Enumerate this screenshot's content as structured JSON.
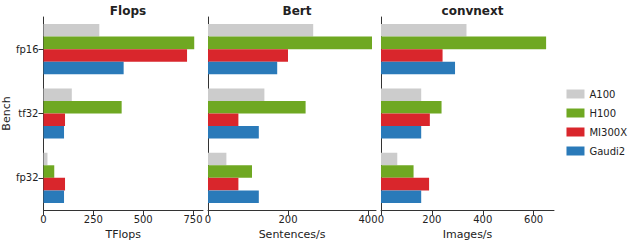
{
  "chart_data": [
    {
      "type": "bar",
      "title": "Flops",
      "xlabel": "TFlops",
      "ylabel": "Bench",
      "orientation": "horizontal",
      "categories": [
        "fp16",
        "tf32",
        "fp32"
      ],
      "series": [
        {
          "name": "A100",
          "color": "#cccccc",
          "values": [
            280,
            142,
            20
          ]
        },
        {
          "name": "H100",
          "color": "#6fa822",
          "values": [
            756,
            392,
            54
          ]
        },
        {
          "name": "MI300X",
          "color": "#d9262c",
          "values": [
            720,
            108,
            108
          ]
        },
        {
          "name": "Gaudi2",
          "color": "#2a7ab9",
          "values": [
            402,
            103,
            103
          ]
        }
      ],
      "xlim": [
        0,
        800
      ],
      "xticks": [
        0,
        250,
        500,
        750
      ]
    },
    {
      "type": "bar",
      "title": "Bert",
      "xlabel": "Sentences/s",
      "orientation": "horizontal",
      "tick_labels": "x",
      "categories": [
        "fp16",
        "tf32",
        "fp32"
      ],
      "series": [
        {
          "name": "A100",
          "color": "#cccccc",
          "values": [
            263,
            141,
            46
          ]
        },
        {
          "name": "H100",
          "color": "#6fa822",
          "values": [
            410,
            244,
            110
          ]
        },
        {
          "name": "MI300X",
          "color": "#d9262c",
          "values": [
            200,
            76,
            76
          ]
        },
        {
          "name": "Gaudi2",
          "color": "#2a7ab9",
          "values": [
            173,
            127,
            127
          ]
        }
      ],
      "xlim": [
        0,
        420
      ],
      "xticks": [
        0,
        200,
        400
      ]
    },
    {
      "type": "bar",
      "title": "convnext",
      "xlabel": "Images/s",
      "orientation": "horizontal",
      "tick_labels": "x",
      "legend": "right",
      "categories": [
        "fp16",
        "tf32",
        "fp32"
      ],
      "series": [
        {
          "name": "A100",
          "color": "#cccccc",
          "values": [
            336,
            158,
            64
          ]
        },
        {
          "name": "H100",
          "color": "#6fa822",
          "values": [
            649,
            238,
            128
          ]
        },
        {
          "name": "MI300X",
          "color": "#d9262c",
          "values": [
            242,
            192,
            189
          ]
        },
        {
          "name": "Gaudi2",
          "color": "#2a7ab9",
          "values": [
            291,
            158,
            158
          ]
        }
      ],
      "xlim": [
        0,
        680
      ],
      "xticks": [
        0,
        200,
        400,
        600
      ]
    }
  ]
}
